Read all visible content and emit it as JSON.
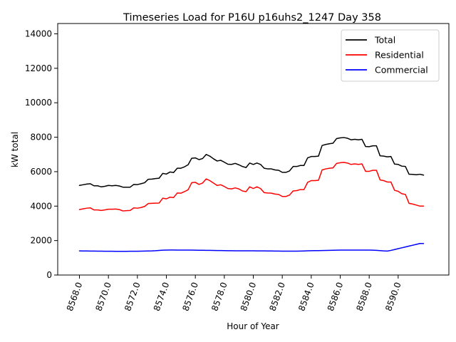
{
  "chart_data": {
    "type": "line",
    "title": "Timeseries Load for P16U p16uhs2_1247  Day 358",
    "xlabel": "Hour of Year",
    "ylabel": "kW total",
    "xlim": [
      8566.5,
      8593.5
    ],
    "ylim": [
      0,
      14600
    ],
    "xticks": [
      8568,
      8570,
      8572,
      8574,
      8576,
      8578,
      8580,
      8582,
      8584,
      8586,
      8588,
      8590
    ],
    "xtick_labels": [
      "8568.0",
      "8570.0",
      "8572.0",
      "8574.0",
      "8576.0",
      "8578.0",
      "8580.0",
      "8582.0",
      "8584.0",
      "8586.0",
      "8588.0",
      "8590.0"
    ],
    "yticks": [
      0,
      2000,
      4000,
      6000,
      8000,
      10000,
      12000,
      14000
    ],
    "ytick_labels": [
      "0",
      "2000",
      "4000",
      "6000",
      "8000",
      "10000",
      "12000",
      "14000"
    ],
    "legend_position": "top-right",
    "x": [
      8568.0,
      8568.25,
      8568.5,
      8568.75,
      8569.0,
      8569.25,
      8569.5,
      8569.75,
      8570.0,
      8570.25,
      8570.5,
      8570.75,
      8571.0,
      8571.25,
      8571.5,
      8571.75,
      8572.0,
      8572.25,
      8572.5,
      8572.75,
      8573.0,
      8573.25,
      8573.5,
      8573.75,
      8574.0,
      8574.25,
      8574.5,
      8574.75,
      8575.0,
      8575.25,
      8575.5,
      8575.75,
      8576.0,
      8576.25,
      8576.5,
      8576.75,
      8577.0,
      8577.25,
      8577.5,
      8577.75,
      8578.0,
      8578.25,
      8578.5,
      8578.75,
      8579.0,
      8579.25,
      8579.5,
      8579.75,
      8580.0,
      8580.25,
      8580.5,
      8580.75,
      8581.0,
      8581.25,
      8581.5,
      8581.75,
      8582.0,
      8582.25,
      8582.5,
      8582.75,
      8583.0,
      8583.25,
      8583.5,
      8583.75,
      8584.0,
      8584.25,
      8584.5,
      8584.75,
      8585.0,
      8585.25,
      8585.5,
      8585.75,
      8586.0,
      8586.25,
      8586.5,
      8586.75,
      8587.0,
      8587.25,
      8587.5,
      8587.75,
      8588.0,
      8588.25,
      8588.5,
      8588.75,
      8589.0,
      8589.25,
      8589.5,
      8589.75,
      8590.0,
      8590.25,
      8590.5,
      8590.75,
      8591.0,
      8591.25,
      8591.5,
      8591.75
    ],
    "series": [
      {
        "name": "Total",
        "color": "#000000",
        "values": [
          5200,
          5240,
          5280,
          5300,
          5180,
          5180,
          5120,
          5150,
          5200,
          5180,
          5200,
          5170,
          5100,
          5100,
          5100,
          5260,
          5250,
          5300,
          5360,
          5560,
          5570,
          5600,
          5620,
          5900,
          5860,
          5980,
          5950,
          6200,
          6200,
          6280,
          6400,
          6780,
          6800,
          6700,
          6760,
          7000,
          6900,
          6750,
          6620,
          6660,
          6550,
          6430,
          6420,
          6480,
          6400,
          6300,
          6240,
          6500,
          6420,
          6500,
          6420,
          6200,
          6160,
          6160,
          6100,
          6080,
          5960,
          5960,
          6040,
          6300,
          6300,
          6360,
          6360,
          6800,
          6880,
          6880,
          6900,
          7520,
          7580,
          7620,
          7650,
          7920,
          7960,
          7980,
          7940,
          7850,
          7880,
          7850,
          7880,
          7460,
          7450,
          7500,
          7500,
          6920,
          6900,
          6860,
          6880,
          6440,
          6420,
          6320,
          6300,
          5850,
          5840,
          5820,
          5850,
          5800
        ]
      },
      {
        "name": "Residential",
        "color": "#ff0000",
        "values": [
          3800,
          3840,
          3880,
          3900,
          3780,
          3780,
          3750,
          3780,
          3820,
          3820,
          3830,
          3800,
          3720,
          3740,
          3750,
          3900,
          3880,
          3920,
          3980,
          4150,
          4160,
          4170,
          4180,
          4460,
          4420,
          4520,
          4500,
          4760,
          4750,
          4840,
          4950,
          5360,
          5380,
          5260,
          5340,
          5580,
          5480,
          5340,
          5200,
          5240,
          5140,
          5020,
          5000,
          5060,
          5000,
          4880,
          4840,
          5120,
          5020,
          5120,
          5020,
          4780,
          4760,
          4750,
          4700,
          4680,
          4560,
          4560,
          4640,
          4880,
          4900,
          4960,
          4960,
          5380,
          5480,
          5480,
          5500,
          6100,
          6160,
          6200,
          6220,
          6480,
          6520,
          6540,
          6500,
          6420,
          6450,
          6420,
          6450,
          6020,
          6020,
          6080,
          6080,
          5520,
          5480,
          5400,
          5400,
          4920,
          4860,
          4720,
          4680,
          4160,
          4120,
          4060,
          4000,
          4000
        ]
      },
      {
        "name": "Commercial",
        "color": "#0000ff",
        "values": [
          1400,
          1398,
          1395,
          1392,
          1390,
          1388,
          1385,
          1382,
          1380,
          1378,
          1376,
          1375,
          1375,
          1376,
          1378,
          1380,
          1382,
          1385,
          1390,
          1395,
          1400,
          1410,
          1425,
          1440,
          1450,
          1455,
          1455,
          1450,
          1448,
          1448,
          1448,
          1445,
          1440,
          1438,
          1436,
          1434,
          1432,
          1428,
          1424,
          1420,
          1416,
          1412,
          1410,
          1408,
          1406,
          1405,
          1405,
          1405,
          1404,
          1403,
          1402,
          1400,
          1398,
          1395,
          1392,
          1390,
          1388,
          1387,
          1386,
          1385,
          1385,
          1390,
          1398,
          1405,
          1410,
          1415,
          1418,
          1420,
          1425,
          1430,
          1438,
          1444,
          1448,
          1450,
          1450,
          1450,
          1450,
          1450,
          1450,
          1450,
          1448,
          1440,
          1430,
          1415,
          1400,
          1390,
          1430,
          1480,
          1530,
          1580,
          1630,
          1680,
          1730,
          1780,
          1830,
          1830
        ]
      }
    ]
  }
}
